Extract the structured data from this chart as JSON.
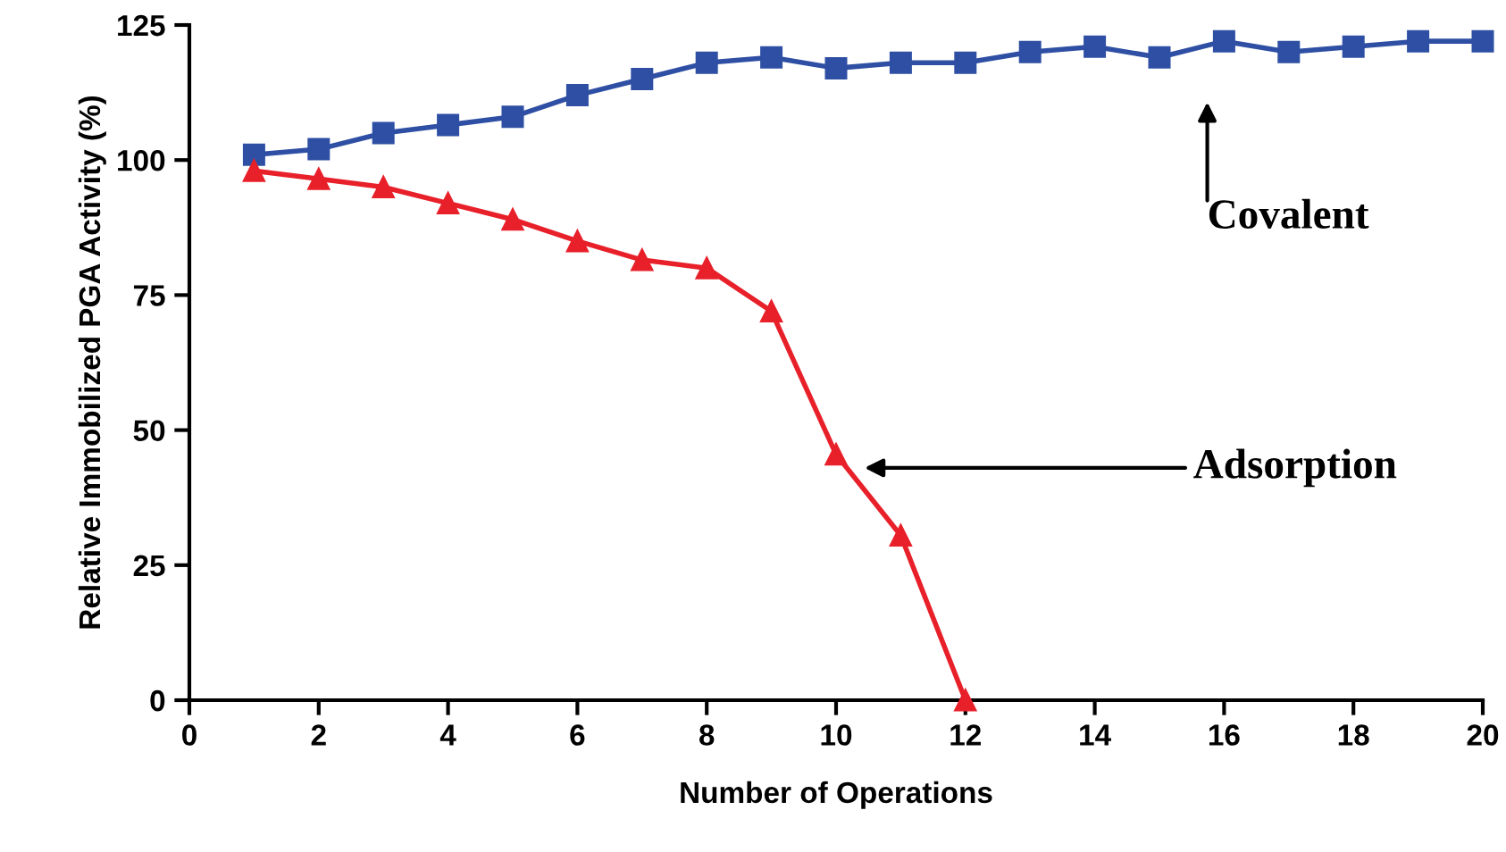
{
  "chart_data": {
    "type": "line",
    "xlabel": "Number of Operations",
    "ylabel": "Relative Immobilized PGA Activity (%)",
    "x": [
      1,
      2,
      3,
      4,
      5,
      6,
      7,
      8,
      9,
      10,
      11,
      12,
      13,
      14,
      15,
      16,
      17,
      18,
      19,
      20
    ],
    "series": [
      {
        "color": "#2e4fa3",
        "marker": "square",
        "values": [
          101,
          102,
          105,
          106.5,
          108,
          112,
          115,
          118,
          119,
          117,
          118,
          118,
          120,
          121,
          119,
          122,
          120,
          121,
          122,
          122
        ]
      },
      {
        "color": "#e8202a",
        "marker": "triangle",
        "values": [
          98,
          96.5,
          95,
          92,
          89,
          85,
          81.5,
          80,
          72,
          45.5,
          30.5,
          0,
          null,
          null,
          null,
          null,
          null,
          null,
          null,
          null
        ]
      }
    ],
    "annotations": [
      "Covalent",
      "Adsorption"
    ],
    "xlim": [
      0,
      20
    ],
    "xticks": [
      0,
      2,
      4,
      6,
      8,
      10,
      12,
      14,
      16,
      18,
      20
    ],
    "ylim": [
      0,
      125
    ],
    "yticks": [
      0,
      25,
      50,
      75,
      100,
      125
    ],
    "grid": false,
    "legend": false,
    "line_style": "solid"
  }
}
